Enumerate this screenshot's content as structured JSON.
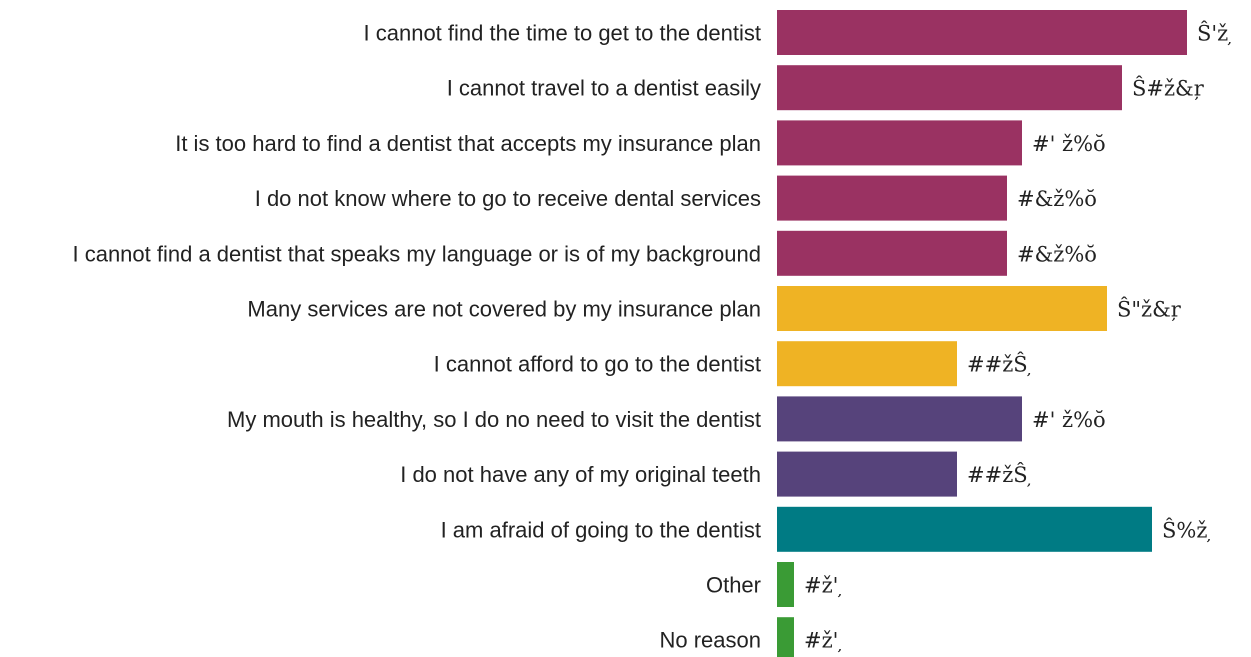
{
  "chart_data": {
    "type": "bar",
    "orientation": "horizontal",
    "title": "",
    "xlabel": "",
    "ylabel": "",
    "grid": false,
    "legend": "none",
    "categories": [
      "I cannot find the time to get to the dentist",
      "I cannot travel to a dentist easily",
      "It is too hard to find a dentist that accepts my insurance plan",
      "I do not know where to go to receive dental services",
      "I cannot find a dentist that speaks my language or is of my background",
      "Many services are not covered by my insurance plan",
      "I cannot afford to go to the dentist",
      "My mouth is healthy, so I do no need to visit the dentist",
      "I do not have any of my original teeth",
      "I am afraid of going to the dentist",
      "Other",
      "No reason"
    ],
    "values": [
      41,
      34.5,
      24.5,
      23,
      23,
      33,
      18,
      24.5,
      18,
      37.5,
      1.7,
      1.7
    ],
    "value_labels": [
      "Ŝ'ž ̦",
      "Ŝ#ž&ŗ",
      "#' ž%ŏ",
      "#&ž%ŏ",
      "#&ž%ŏ",
      "Ŝ\"ž&ŗ",
      "##žŜ ̦",
      "#' ž%ŏ",
      "##žŜ ̦",
      "Ŝ%ž ̦",
      "#ž' ̦",
      "#ž' ̦"
    ],
    "colors": [
      "#9a3262",
      "#9a3262",
      "#9a3262",
      "#9a3262",
      "#9a3262",
      "#efb324",
      "#efb324",
      "#56437b",
      "#56437b",
      "#007b84",
      "#3a9b35",
      "#3a9b35"
    ],
    "xlim": [
      0,
      45
    ]
  }
}
